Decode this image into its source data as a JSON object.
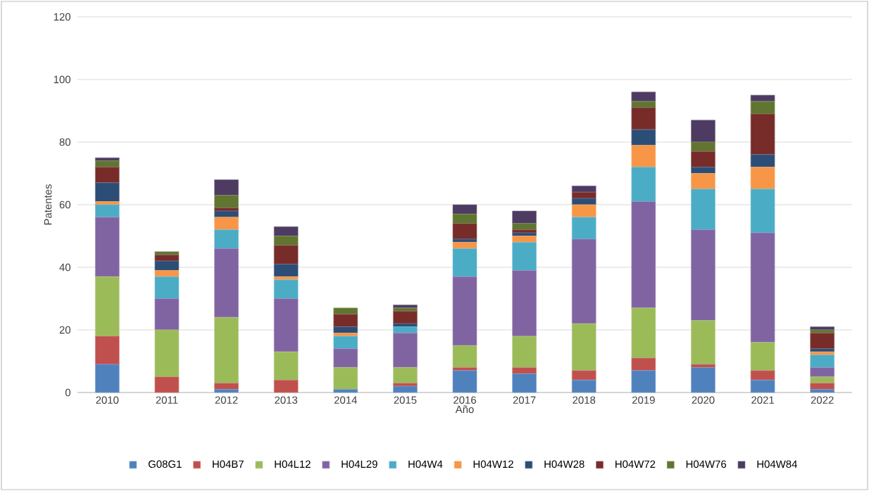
{
  "chart_data": {
    "type": "bar",
    "stacked": true,
    "xlabel": "Año",
    "ylabel": "Patentes",
    "categories": [
      "2010",
      "2011",
      "2012",
      "2013",
      "2014",
      "2015",
      "2016",
      "2017",
      "2018",
      "2019",
      "2020",
      "2021",
      "2022"
    ],
    "ylim": [
      0,
      120
    ],
    "yticks": [
      0,
      20,
      40,
      60,
      80,
      100,
      120
    ],
    "grid": "y",
    "legend": "bottom",
    "series": [
      {
        "name": "G08G1",
        "color": "#4f81bd",
        "values": [
          9,
          0,
          1,
          0,
          1,
          2,
          7,
          6,
          4,
          7,
          8,
          4,
          1
        ]
      },
      {
        "name": "H04B7",
        "color": "#c0504d",
        "values": [
          9,
          5,
          2,
          4,
          0,
          1,
          1,
          2,
          3,
          4,
          1,
          3,
          2
        ]
      },
      {
        "name": "H04L12",
        "color": "#9bbb59",
        "values": [
          19,
          15,
          21,
          9,
          7,
          5,
          7,
          10,
          15,
          16,
          14,
          9,
          2
        ]
      },
      {
        "name": "H04L29",
        "color": "#8064a2",
        "values": [
          19,
          10,
          22,
          17,
          6,
          11,
          22,
          21,
          27,
          34,
          29,
          35,
          3
        ]
      },
      {
        "name": "H04W4",
        "color": "#4bacc6",
        "values": [
          4,
          7,
          6,
          6,
          4,
          2,
          9,
          9,
          7,
          11,
          13,
          14,
          4
        ]
      },
      {
        "name": "H04W12",
        "color": "#f79646",
        "values": [
          1,
          2,
          4,
          1,
          1,
          0,
          2,
          2,
          4,
          7,
          5,
          7,
          1
        ]
      },
      {
        "name": "H04W28",
        "color": "#2c4d75",
        "values": [
          6,
          3,
          2,
          4,
          2,
          1,
          1,
          1,
          2,
          5,
          2,
          4,
          1
        ]
      },
      {
        "name": "H04W72",
        "color": "#772c2a",
        "values": [
          5,
          2,
          1,
          6,
          4,
          4,
          5,
          1,
          2,
          7,
          5,
          13,
          5
        ]
      },
      {
        "name": "H04W76",
        "color": "#5f7530",
        "values": [
          2,
          1,
          4,
          3,
          2,
          1,
          3,
          2,
          0,
          2,
          3,
          4,
          1
        ]
      },
      {
        "name": "H04W84",
        "color": "#4d3b62",
        "values": [
          1,
          0,
          5,
          3,
          0,
          1,
          3,
          4,
          2,
          3,
          7,
          2,
          1
        ]
      }
    ]
  }
}
